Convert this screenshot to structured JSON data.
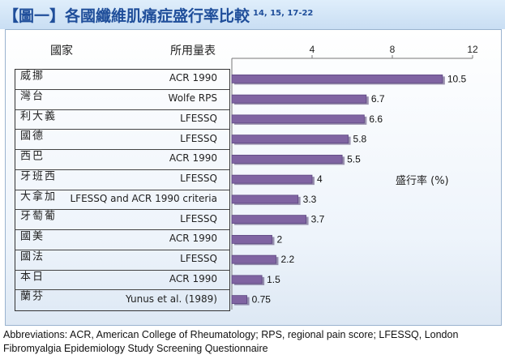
{
  "header": {
    "title": "【圖一】各國纖維肌痛症盛行率比較",
    "refs": "14, 15, 17-22"
  },
  "table_headers": {
    "country": "國家",
    "method": "所用量表"
  },
  "unit_label": "盛行率 (%)",
  "footnote": "Abbreviations: ACR, American College of Rheumatology; RPS, regional pain score; LFESSQ, London Fibromyalgia Epidemiology Study Screening Questionnaire",
  "chart_data": {
    "type": "bar",
    "orientation": "horizontal",
    "categories": [
      "挪威",
      "台灣",
      "義大利",
      "德國",
      "巴西",
      "西班牙",
      "加拿大",
      "葡萄牙",
      "美國",
      "法國",
      "日本",
      "芬蘭"
    ],
    "methods": [
      "ACR 1990",
      "Wolfe RPS",
      "LFESSQ",
      "LFESSQ",
      "ACR 1990",
      "LFESSQ",
      "LFESSQ and ACR 1990 criteria",
      "LFESSQ",
      "ACR 1990",
      "LFESSQ",
      "ACR 1990",
      "Yunus et al. (1989)"
    ],
    "values": [
      10.5,
      6.7,
      6.6,
      5.8,
      5.5,
      4,
      3.3,
      3.7,
      2,
      2.2,
      1.5,
      0.75
    ],
    "value_labels": [
      "10.5",
      "6.7",
      "6.6",
      "5.8",
      "5.5",
      "4",
      "3.3",
      "3.7",
      "2",
      "2.2",
      "1.5",
      "0.75"
    ],
    "xticks": [
      4,
      8,
      12
    ],
    "xlim": [
      0,
      12
    ],
    "bar_color": "#8064a2",
    "grid": false
  }
}
